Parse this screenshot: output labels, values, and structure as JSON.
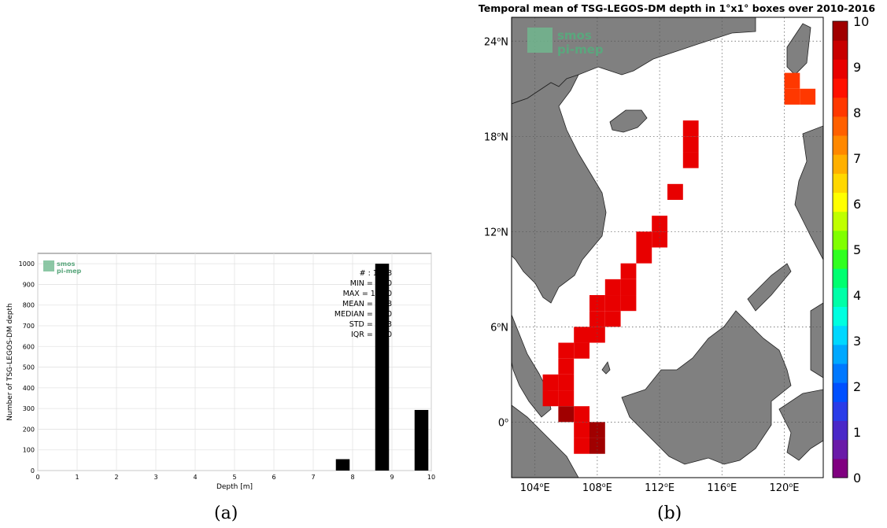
{
  "captions": {
    "a": "(a)",
    "b": "(b)"
  },
  "logo": {
    "line1": "smos",
    "line2": "pi-mep",
    "color": "#5aa77d"
  },
  "chart_data": [
    {
      "type": "bar",
      "xlabel": "Depth [m]",
      "ylabel": "Number of TSG-LEGOS-DM depth",
      "xlim": [
        0,
        10
      ],
      "ylim": [
        0,
        1050
      ],
      "grid": true,
      "xticks": [
        "0",
        "1",
        "2",
        "3",
        "4",
        "5",
        "6",
        "7",
        "8",
        "9",
        "10"
      ],
      "yticks": [
        "0",
        "100",
        "200",
        "300",
        "400",
        "500",
        "600",
        "700",
        "800",
        "900",
        "1000"
      ],
      "bars": [
        {
          "x": 7.75,
          "value": 55
        },
        {
          "x": 8.75,
          "value": 1000
        },
        {
          "x": 9.75,
          "value": 293
        }
      ],
      "bar_width": 0.35,
      "bar_color": "#000000",
      "stats": [
        "# : 1348",
        "MIN = 8.00",
        "MAX = 10.00",
        "MEAN = 9.18",
        "MEDIAN = 9.00",
        "STD = 0.33",
        "IQR = 0.00"
      ]
    },
    {
      "type": "heatmap",
      "title": "Temporal mean of TSG-LEGOS-DM depth in 1°x1° boxes over 2010-2016",
      "xlim": [
        102.5,
        122.5
      ],
      "ylim": [
        -3.5,
        25.5
      ],
      "xticks": [
        {
          "value": 104,
          "label": "104",
          "suffix": "E"
        },
        {
          "value": 108,
          "label": "108",
          "suffix": "E"
        },
        {
          "value": 112,
          "label": "112",
          "suffix": "E"
        },
        {
          "value": 116,
          "label": "116",
          "suffix": "E"
        },
        {
          "value": 120,
          "label": "120",
          "suffix": "E"
        }
      ],
      "yticks": [
        {
          "value": 0,
          "label": "0",
          "suffix": ""
        },
        {
          "value": 6,
          "label": "6",
          "suffix": "N"
        },
        {
          "value": 12,
          "label": "12",
          "suffix": "N"
        },
        {
          "value": 18,
          "label": "18",
          "suffix": "N"
        },
        {
          "value": 24,
          "label": "24",
          "suffix": "N"
        }
      ],
      "colorbar": {
        "range": [
          0,
          10
        ],
        "ticks": [
          "0",
          "1",
          "2",
          "3",
          "4",
          "5",
          "6",
          "7",
          "8",
          "9",
          "10"
        ],
        "colors": [
          "#800080",
          "#6a1aa8",
          "#4a28c8",
          "#2a3ce8",
          "#0050ff",
          "#0078ff",
          "#00a8ff",
          "#00d8ff",
          "#00ffe0",
          "#00ffa8",
          "#00ff70",
          "#30ff20",
          "#80ff00",
          "#c0ff00",
          "#ffff00",
          "#ffd800",
          "#ffb000",
          "#ff8800",
          "#ff6000",
          "#ff3800",
          "#ff1000",
          "#e80000",
          "#c80000",
          "#a00000"
        ]
      },
      "grid": true,
      "cells": [
        {
          "lon": 120.5,
          "lat": 21.5,
          "value": 8.3
        },
        {
          "lon": 121.5,
          "lat": 20.5,
          "value": 8.3
        },
        {
          "lon": 120.5,
          "lat": 20.5,
          "value": 8.3
        },
        {
          "lon": 114,
          "lat": 18.5,
          "value": 9.1
        },
        {
          "lon": 114,
          "lat": 17.5,
          "value": 9.1
        },
        {
          "lon": 114,
          "lat": 16.5,
          "value": 9.1
        },
        {
          "lon": 113,
          "lat": 14.5,
          "value": 9.1
        },
        {
          "lon": 112,
          "lat": 12.5,
          "value": 9.1
        },
        {
          "lon": 112,
          "lat": 11.5,
          "value": 9.1
        },
        {
          "lon": 111,
          "lat": 11.5,
          "value": 9.1
        },
        {
          "lon": 111,
          "lat": 10.5,
          "value": 9.1
        },
        {
          "lon": 110,
          "lat": 9.5,
          "value": 9.1
        },
        {
          "lon": 110,
          "lat": 8.5,
          "value": 9.1
        },
        {
          "lon": 110,
          "lat": 7.5,
          "value": 9.1
        },
        {
          "lon": 109,
          "lat": 8.5,
          "value": 9.1
        },
        {
          "lon": 109,
          "lat": 7.5,
          "value": 9.1
        },
        {
          "lon": 109,
          "lat": 6.5,
          "value": 9.1
        },
        {
          "lon": 108,
          "lat": 7.5,
          "value": 9.1
        },
        {
          "lon": 108,
          "lat": 6.5,
          "value": 9.1
        },
        {
          "lon": 108,
          "lat": 5.5,
          "value": 9.1
        },
        {
          "lon": 107,
          "lat": 5.5,
          "value": 9.1
        },
        {
          "lon": 107,
          "lat": 4.5,
          "value": 9.1
        },
        {
          "lon": 106,
          "lat": 4.5,
          "value": 9.1
        },
        {
          "lon": 106,
          "lat": 3.5,
          "value": 9.1
        },
        {
          "lon": 106,
          "lat": 2.5,
          "value": 9.1
        },
        {
          "lon": 106,
          "lat": 1.5,
          "value": 9.1
        },
        {
          "lon": 105,
          "lat": 2.5,
          "value": 9.1
        },
        {
          "lon": 105,
          "lat": 1.5,
          "value": 9.1
        },
        {
          "lon": 106,
          "lat": 0.5,
          "value": 9.8
        },
        {
          "lon": 107,
          "lat": 0.5,
          "value": 9.1
        },
        {
          "lon": 107,
          "lat": -0.5,
          "value": 9.1
        },
        {
          "lon": 107,
          "lat": -1.5,
          "value": 9.1
        },
        {
          "lon": 108,
          "lat": -0.5,
          "value": 9.8
        },
        {
          "lon": 108,
          "lat": -1.5,
          "value": 9.8
        }
      ],
      "land_color": "#808080"
    }
  ]
}
